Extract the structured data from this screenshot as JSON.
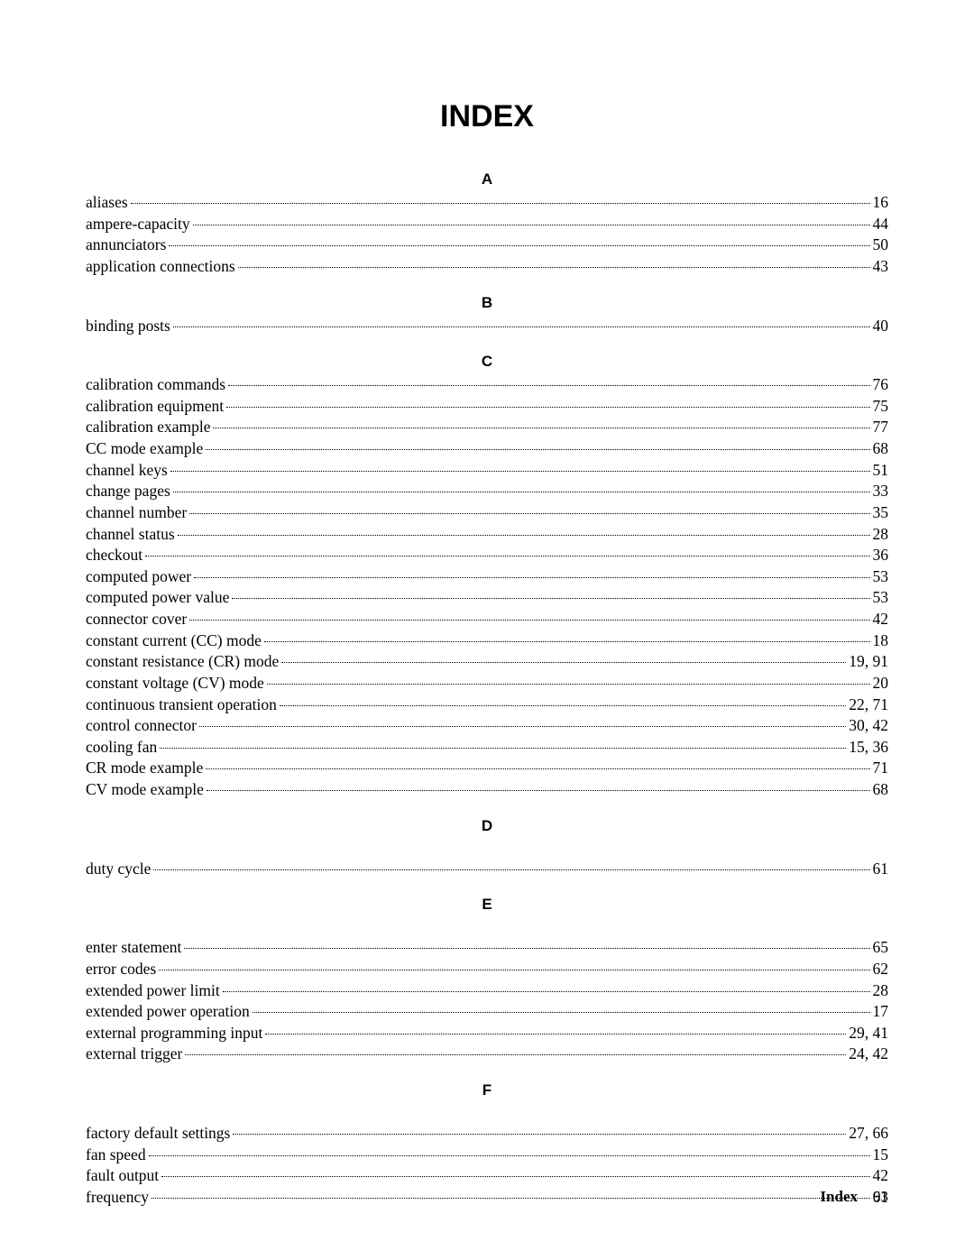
{
  "title": "INDEX",
  "footer": {
    "label": "Index",
    "page": "93"
  },
  "sections": [
    {
      "letter": "A",
      "entries": [
        {
          "term": "aliases",
          "pages": "16"
        },
        {
          "term": "ampere-capacity",
          "pages": "44"
        },
        {
          "term": "annunciators",
          "pages": "50"
        },
        {
          "term": "application connections",
          "pages": "43"
        }
      ]
    },
    {
      "letter": "B",
      "entries": [
        {
          "term": "binding posts",
          "pages": "40"
        }
      ]
    },
    {
      "letter": "C",
      "entries": [
        {
          "term": "calibration commands",
          "pages": "76"
        },
        {
          "term": "calibration equipment",
          "pages": "75"
        },
        {
          "term": "calibration example",
          "pages": "77"
        },
        {
          "term": "CC mode example",
          "pages": "68"
        },
        {
          "term": "channel keys",
          "pages": "51"
        },
        {
          "term": "change pages",
          "pages": "33"
        },
        {
          "term": "channel number",
          "pages": "35"
        },
        {
          "term": "channel status",
          "pages": "28"
        },
        {
          "term": "checkout",
          "pages": "36"
        },
        {
          "term": "computed power",
          "pages": "53"
        },
        {
          "term": "computed power value",
          "pages": "53"
        },
        {
          "term": "connector cover",
          "pages": "42"
        },
        {
          "term": "constant current (CC) mode",
          "pages": "18"
        },
        {
          "term": "constant resistance (CR) mode",
          "pages": "19, 91"
        },
        {
          "term": "constant voltage (CV) mode",
          "pages": "20"
        },
        {
          "term": "continuous transient operation",
          "pages": "22, 71"
        },
        {
          "term": "control connector",
          "pages": "30, 42"
        },
        {
          "term": "cooling fan",
          "pages": "15, 36"
        },
        {
          "term": "CR mode example",
          "pages": "71"
        },
        {
          "term": "CV mode example",
          "pages": "68"
        }
      ]
    },
    {
      "letter": "D",
      "spaceBefore": true,
      "entries": [
        {
          "term": "duty cycle",
          "pages": "61"
        }
      ]
    },
    {
      "letter": "E",
      "spaceBefore": true,
      "entries": [
        {
          "term": "enter statement",
          "pages": "65"
        },
        {
          "term": "error codes",
          "pages": "62"
        },
        {
          "term": "extended power limit",
          "pages": "28"
        },
        {
          "term": "extended power operation",
          "pages": "17"
        },
        {
          "term": "external programming input",
          "pages": "29, 41"
        },
        {
          "term": "external trigger",
          "pages": "24, 42"
        }
      ]
    },
    {
      "letter": "F",
      "spaceBefore": true,
      "entries": [
        {
          "term": "factory default settings",
          "pages": "27, 66"
        },
        {
          "term": "fan speed",
          "pages": "15"
        },
        {
          "term": "fault output",
          "pages": "42"
        },
        {
          "term": "frequency",
          "pages": "61"
        }
      ]
    }
  ]
}
